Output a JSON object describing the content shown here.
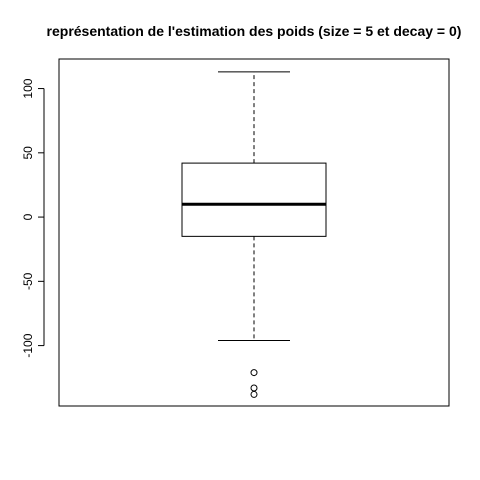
{
  "chart_data": {
    "type": "boxplot",
    "title": "représentation de l'estimation des poids (size = 5 et decay = 0)",
    "xlabel": "",
    "ylabel": "",
    "ylim": [
      -147,
      123
    ],
    "y_ticks": [
      {
        "value": 100,
        "label": "100"
      },
      {
        "value": 50,
        "label": "50"
      },
      {
        "value": 0,
        "label": "0"
      },
      {
        "value": -50,
        "label": "-50"
      },
      {
        "value": -100,
        "label": "-100"
      }
    ],
    "box": {
      "whisker_low": -96,
      "q1": -15,
      "median": 10,
      "q3": 42,
      "whisker_high": 113
    },
    "outliers": [
      -121,
      -133,
      -138
    ],
    "grid": false,
    "colors": {
      "stroke": "#000000",
      "background": "#ffffff"
    }
  }
}
